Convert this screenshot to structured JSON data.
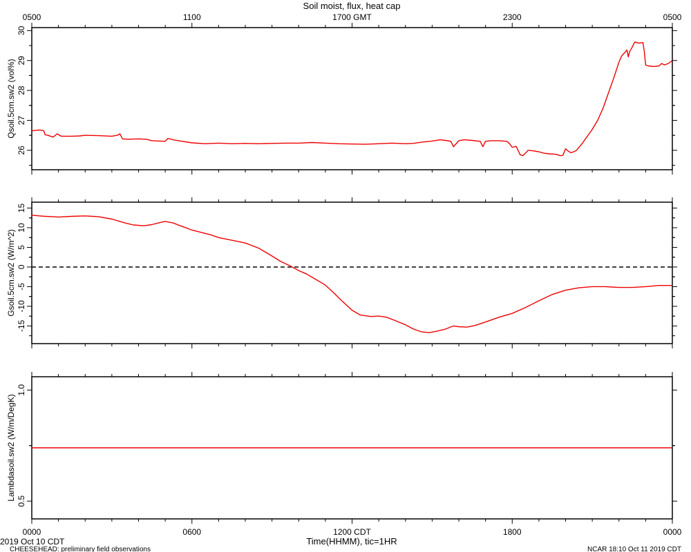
{
  "title": "Soil moist, flux, heat cap",
  "top_axis": {
    "ticks": [
      {
        "hour": 0,
        "label": "0500"
      },
      {
        "hour": 6,
        "label": "1100"
      },
      {
        "hour": 12,
        "label": "1700 GMT"
      },
      {
        "hour": 18,
        "label": "2300"
      },
      {
        "hour": 24,
        "label": "0500"
      }
    ]
  },
  "bottom_axis": {
    "label": "Time(HHMM), tic=1HR",
    "ticks": [
      {
        "hour": 0,
        "label": "0000"
      },
      {
        "hour": 6,
        "label": "0600"
      },
      {
        "hour": 12,
        "label": "1200 CDT"
      },
      {
        "hour": 18,
        "label": "1800"
      },
      {
        "hour": 24,
        "label": "0000"
      }
    ]
  },
  "footer": {
    "date": "2019 Oct 10 CDT",
    "project": "CHEESEHEAD: preliminary field observations",
    "stamp": "NCAR 18:10 Oct 11 2019 CDT"
  },
  "colors": {
    "series": "#ee0000",
    "axes": "#000000",
    "zero_line": "#000000"
  },
  "chart_data": [
    {
      "type": "line",
      "ylabel": "Qsoil.5cm.sw2 (vol%)",
      "x_unit": "hours since 0000 CDT",
      "xlim": [
        0,
        24
      ],
      "ylim": [
        25.35,
        30.1
      ],
      "yticks": [
        26,
        27,
        28,
        29,
        30
      ],
      "grid": false,
      "series": [
        {
          "x": [
            0,
            0.3,
            0.45,
            0.5,
            0.6,
            0.8,
            0.95,
            1.1,
            1.5,
            1.8,
            2.0,
            2.5,
            3.0,
            3.2,
            3.3,
            3.4,
            3.6,
            4.0,
            4.3,
            4.5,
            5.0,
            5.1,
            5.3,
            5.5,
            6.0,
            6.5,
            7.0,
            7.5,
            8.0,
            8.5,
            9.0,
            9.5,
            10.0,
            10.5,
            11.0,
            11.5,
            12.0,
            12.5,
            13.0,
            13.5,
            14.0,
            14.3,
            14.6,
            15.0,
            15.3,
            15.5,
            15.7,
            15.8,
            16.0,
            16.2,
            16.5,
            16.8,
            16.9,
            17.0,
            17.2,
            17.5,
            17.8,
            17.9,
            18.0,
            18.15,
            18.3,
            18.4,
            18.6,
            18.8,
            19.0,
            19.2,
            19.4,
            19.6,
            19.7,
            19.8,
            19.9,
            20.0,
            20.1,
            20.2,
            20.3,
            20.4,
            20.6,
            20.8,
            21.0,
            21.2,
            21.4,
            21.6,
            21.8,
            22.0,
            22.1,
            22.2,
            22.3,
            22.35,
            22.4,
            22.5,
            22.55,
            22.6,
            22.75,
            22.9,
            22.95,
            23.0,
            23.1,
            23.3,
            23.5,
            23.6,
            23.7,
            23.85,
            24.0
          ],
          "values": [
            26.65,
            26.68,
            26.65,
            26.52,
            26.5,
            26.44,
            26.55,
            26.47,
            26.47,
            26.48,
            26.5,
            26.49,
            26.47,
            26.5,
            26.55,
            26.38,
            26.37,
            26.38,
            26.37,
            26.32,
            26.3,
            26.4,
            26.35,
            26.32,
            26.25,
            26.22,
            26.24,
            26.22,
            26.23,
            26.22,
            26.23,
            26.24,
            26.24,
            26.26,
            26.24,
            26.22,
            26.21,
            26.2,
            26.22,
            26.24,
            26.22,
            26.23,
            26.27,
            26.31,
            26.35,
            26.33,
            26.3,
            26.12,
            26.32,
            26.35,
            26.33,
            26.3,
            26.12,
            26.3,
            26.32,
            26.32,
            26.3,
            26.22,
            26.1,
            26.13,
            25.85,
            25.82,
            26.0,
            25.98,
            25.95,
            25.9,
            25.88,
            25.87,
            25.85,
            25.82,
            25.83,
            26.05,
            25.97,
            25.92,
            25.95,
            25.99,
            26.2,
            26.45,
            26.7,
            27.0,
            27.4,
            27.9,
            28.4,
            28.95,
            29.15,
            29.25,
            29.35,
            29.12,
            29.3,
            29.45,
            29.55,
            29.62,
            29.58,
            29.6,
            29.3,
            28.85,
            28.82,
            28.8,
            28.82,
            28.9,
            28.85,
            28.9,
            29.0
          ]
        }
      ]
    },
    {
      "type": "line",
      "ylabel": "Gsoil.5cm.sw2 (W/m^2)",
      "x_unit": "hours since 0000 CDT",
      "xlim": [
        0,
        24
      ],
      "ylim": [
        -19.5,
        16.5
      ],
      "yticks": [
        -15,
        -10,
        -5,
        0,
        5,
        10,
        15
      ],
      "reference_line": 0,
      "grid": false,
      "series": [
        {
          "x": [
            0,
            0.3,
            0.5,
            0.8,
            1.0,
            1.5,
            2.0,
            2.5,
            3.0,
            3.5,
            3.8,
            4.2,
            4.5,
            4.8,
            5.0,
            5.3,
            5.6,
            6.0,
            6.3,
            6.7,
            7.0,
            7.5,
            8.0,
            8.5,
            9.0,
            9.3,
            9.7,
            10.0,
            10.3,
            10.6,
            11.0,
            11.3,
            11.6,
            12.0,
            12.3,
            12.7,
            13.0,
            13.3,
            13.6,
            14.0,
            14.3,
            14.6,
            14.9,
            15.2,
            15.5,
            15.8,
            16.0,
            16.3,
            16.6,
            17.0,
            17.5,
            18.0,
            18.5,
            19.0,
            19.5,
            20.0,
            20.5,
            21.0,
            21.5,
            22.0,
            22.5,
            23.0,
            23.5,
            24.0
          ],
          "values": [
            13.2,
            13.0,
            12.9,
            12.8,
            12.7,
            12.9,
            13.0,
            12.8,
            12.2,
            11.2,
            10.7,
            10.5,
            10.8,
            11.3,
            11.6,
            11.2,
            10.4,
            9.4,
            8.9,
            8.2,
            7.5,
            6.8,
            6.1,
            4.8,
            2.8,
            1.5,
            0.2,
            -0.9,
            -1.8,
            -3.0,
            -4.6,
            -6.5,
            -8.5,
            -11.0,
            -12.2,
            -12.6,
            -12.5,
            -12.8,
            -13.6,
            -14.7,
            -15.8,
            -16.5,
            -16.7,
            -16.3,
            -15.8,
            -15.0,
            -15.2,
            -15.3,
            -14.9,
            -14.0,
            -12.8,
            -11.8,
            -10.3,
            -8.6,
            -7.0,
            -5.9,
            -5.3,
            -5.0,
            -5.0,
            -5.2,
            -5.2,
            -5.0,
            -4.7,
            -4.7
          ]
        }
      ]
    },
    {
      "type": "line",
      "ylabel": "Lambdasoil.sw2 (W/m/DegK)",
      "x_unit": "hours since 0000 CDT",
      "xlim": [
        0,
        24
      ],
      "ylim": [
        0.42,
        1.06
      ],
      "yticks": [
        0.5,
        1.0
      ],
      "grid": false,
      "series": [
        {
          "x": [
            0,
            24
          ],
          "values": [
            0.74,
            0.74
          ]
        }
      ]
    }
  ]
}
